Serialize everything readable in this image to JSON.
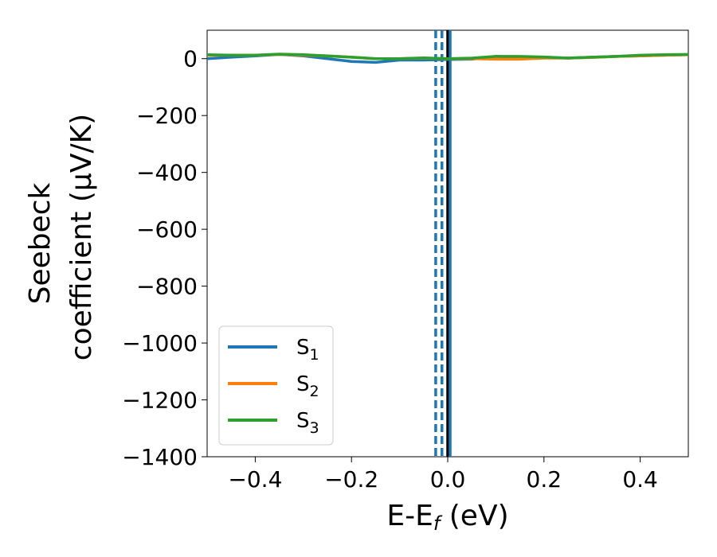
{
  "chart_data": {
    "type": "line",
    "xlabel": "E-E",
    "xlabel_sub": "f",
    "xlabel_unit": " (eV)",
    "ylabel_line1": "Seebeck",
    "ylabel_line2": "coefficient  (μV/K)",
    "xlim": [
      -0.5,
      0.5
    ],
    "ylim": [
      -1400,
      100
    ],
    "xticks": [
      -0.4,
      -0.2,
      0.0,
      0.2,
      0.4
    ],
    "xtick_labels": [
      "−0.4",
      "−0.2",
      "0.0",
      "0.2",
      "0.4"
    ],
    "yticks": [
      0,
      -200,
      -400,
      -600,
      -800,
      -1000,
      -1200,
      -1400
    ],
    "ytick_labels": [
      "0",
      "−200",
      "−400",
      "−600",
      "−800",
      "−1000",
      "−1200",
      "−1400"
    ],
    "grid": false,
    "legend_position": "lower-left",
    "series": [
      {
        "name": "S",
        "name_sub": "1",
        "color": "#1f77b4",
        "x": [
          -0.5,
          -0.45,
          -0.4,
          -0.35,
          -0.3,
          -0.25,
          -0.2,
          -0.15,
          -0.1,
          -0.05,
          0.0,
          0.05,
          0.1,
          0.15,
          0.2,
          0.25,
          0.3,
          0.35,
          0.4,
          0.45,
          0.5
        ],
        "y": [
          0,
          5,
          10,
          15,
          10,
          0,
          -10,
          -13,
          -5,
          -5,
          -3,
          -2,
          8,
          5,
          5,
          2,
          5,
          8,
          10,
          12,
          14
        ]
      },
      {
        "name": "S",
        "name_sub": "2",
        "color": "#ff7f0e",
        "x": [
          -0.5,
          -0.45,
          -0.4,
          -0.35,
          -0.3,
          -0.25,
          -0.2,
          -0.15,
          -0.1,
          -0.05,
          0.0,
          0.05,
          0.1,
          0.15,
          0.2,
          0.25,
          0.3,
          0.35,
          0.4,
          0.45,
          0.5
        ],
        "y": [
          12,
          12,
          12,
          15,
          12,
          10,
          5,
          0,
          0,
          2,
          0,
          0,
          -2,
          -2,
          2,
          2,
          4,
          8,
          10,
          12,
          14
        ]
      },
      {
        "name": "S",
        "name_sub": "3",
        "color": "#2ca02c",
        "x": [
          -0.5,
          -0.45,
          -0.4,
          -0.35,
          -0.3,
          -0.25,
          -0.2,
          -0.15,
          -0.1,
          -0.05,
          0.0,
          0.05,
          0.1,
          0.15,
          0.2,
          0.25,
          0.3,
          0.35,
          0.4,
          0.45,
          0.5
        ],
        "y": [
          14,
          12,
          12,
          16,
          14,
          10,
          5,
          0,
          0,
          3,
          0,
          2,
          8,
          8,
          6,
          2,
          5,
          8,
          12,
          14,
          15
        ]
      }
    ],
    "vlines": [
      {
        "x": -0.025,
        "style": "dashed",
        "color": "#1f77b4"
      },
      {
        "x": -0.012,
        "style": "dashed",
        "color": "#1f77b4"
      },
      {
        "x": 0.0,
        "style": "solid",
        "color": "#000000"
      },
      {
        "x": 0.005,
        "style": "solid",
        "color": "#1f77b4"
      }
    ]
  }
}
